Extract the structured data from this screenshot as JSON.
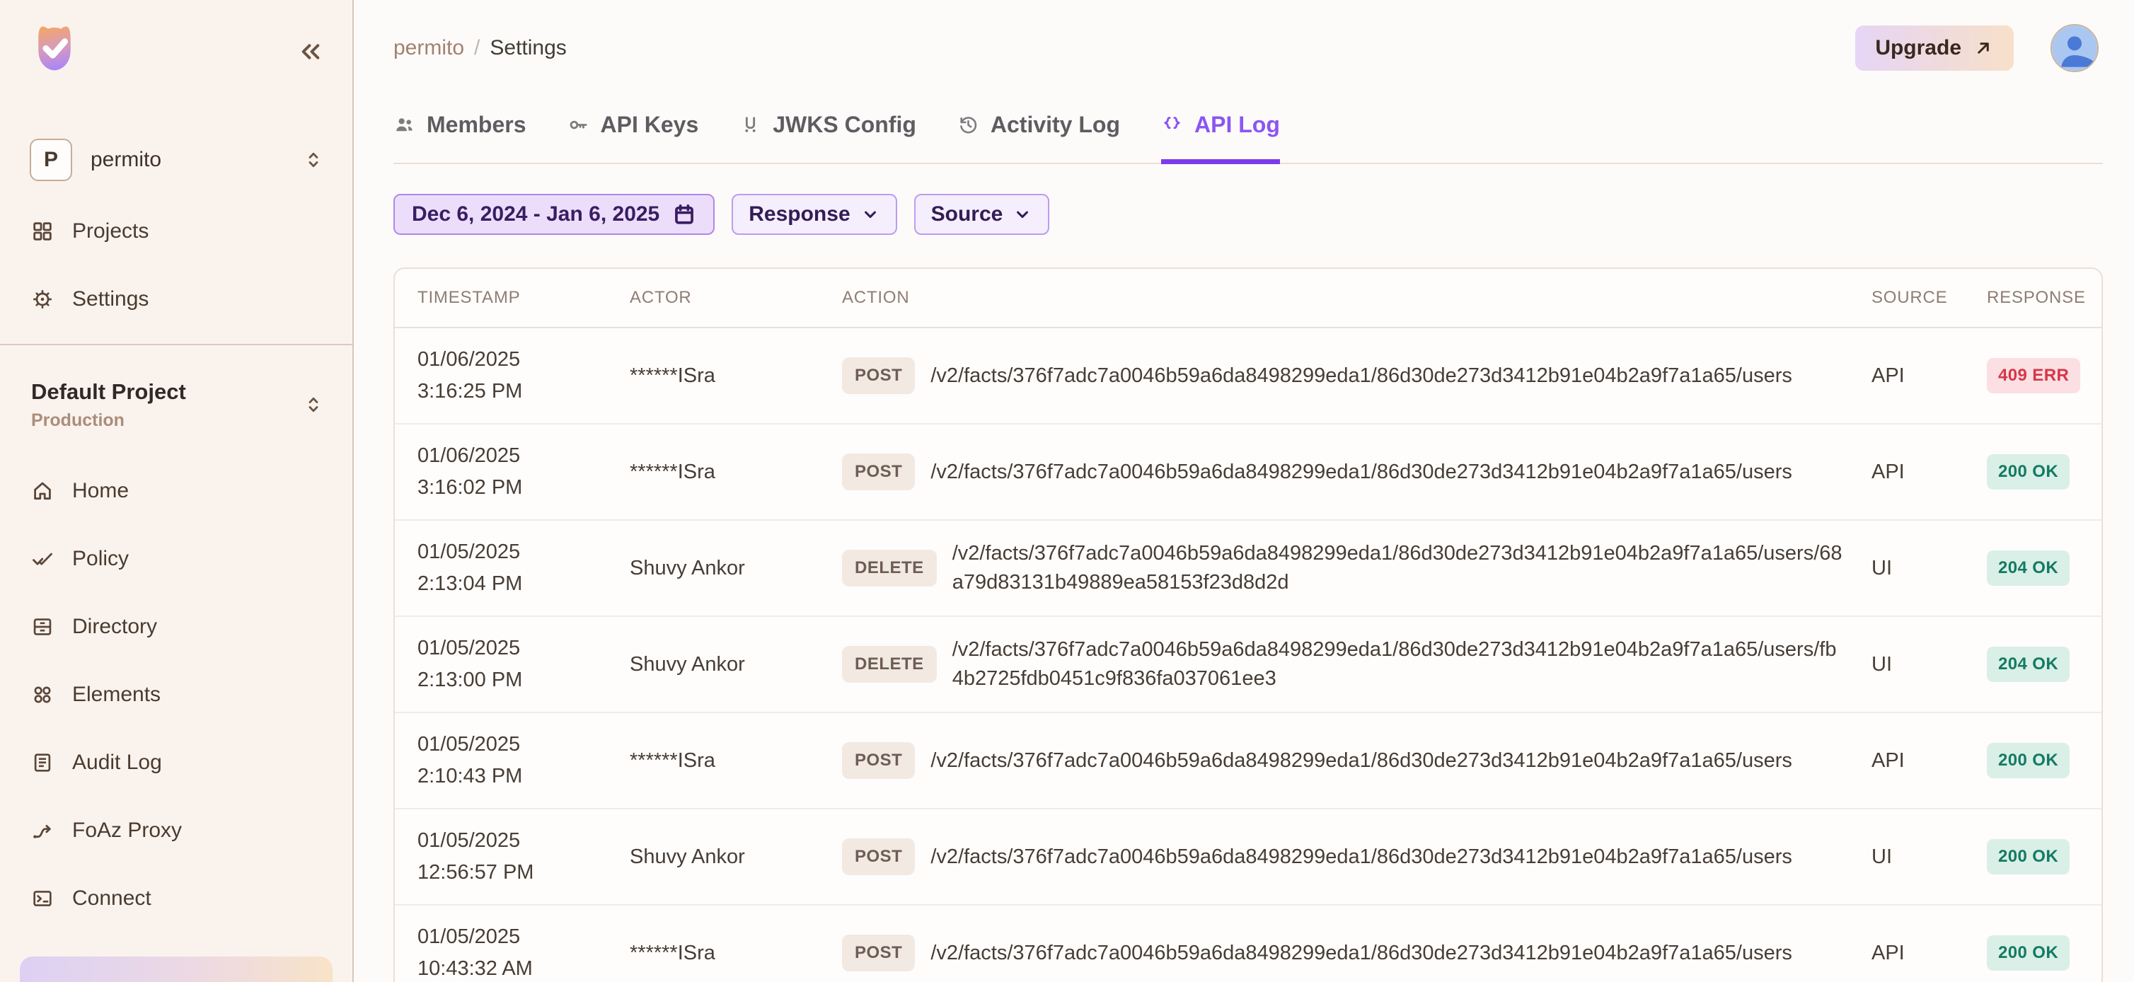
{
  "sidebar": {
    "workspace": {
      "initial": "P",
      "name": "permito"
    },
    "nav_top": [
      {
        "label": "Projects",
        "icon": "grid-icon"
      },
      {
        "label": "Settings",
        "icon": "gear-icon"
      }
    ],
    "project": {
      "name": "Default Project",
      "environment": "Production"
    },
    "nav_project": [
      {
        "label": "Home",
        "icon": "home-icon"
      },
      {
        "label": "Policy",
        "icon": "double-check-icon"
      },
      {
        "label": "Directory",
        "icon": "directory-icon"
      },
      {
        "label": "Elements",
        "icon": "elements-icon"
      },
      {
        "label": "Audit Log",
        "icon": "audit-log-icon"
      },
      {
        "label": "FoAz Proxy",
        "icon": "proxy-route-icon"
      },
      {
        "label": "Connect",
        "icon": "terminal-icon"
      }
    ]
  },
  "header": {
    "breadcrumb": {
      "org": "permito",
      "separator": "/",
      "page": "Settings"
    },
    "upgrade_label": "Upgrade"
  },
  "tabs": [
    {
      "label": "Members",
      "icon": "members-icon",
      "active": false
    },
    {
      "label": "API Keys",
      "icon": "key-icon",
      "active": false
    },
    {
      "label": "JWKS Config",
      "icon": "jwks-icon",
      "active": false
    },
    {
      "label": "Activity Log",
      "icon": "history-icon",
      "active": false
    },
    {
      "label": "API Log",
      "icon": "code-braces-icon",
      "active": true
    }
  ],
  "filters": {
    "date_range": "Dec 6, 2024 - Jan 6, 2025",
    "response_label": "Response",
    "source_label": "Source"
  },
  "table": {
    "columns": [
      "TIMESTAMP",
      "ACTOR",
      "ACTION",
      "SOURCE",
      "RESPONSE"
    ],
    "rows": [
      {
        "date": "01/06/2025",
        "time": "3:16:25 PM",
        "actor": "******ISra",
        "method": "POST",
        "url": "/v2/facts/376f7adc7a0046b59a6da8498299eda1/86d30de273d3412b91e04b2a9f7a1a65/users",
        "source": "API",
        "response": "409 ERR",
        "status": "error"
      },
      {
        "date": "01/06/2025",
        "time": "3:16:02 PM",
        "actor": "******ISra",
        "method": "POST",
        "url": "/v2/facts/376f7adc7a0046b59a6da8498299eda1/86d30de273d3412b91e04b2a9f7a1a65/users",
        "source": "API",
        "response": "200 OK",
        "status": "ok"
      },
      {
        "date": "01/05/2025",
        "time": "2:13:04 PM",
        "actor": "Shuvy Ankor",
        "method": "DELETE",
        "url": "/v2/facts/376f7adc7a0046b59a6da8498299eda1/86d30de273d3412b91e04b2a9f7a1a65/users/68a79d83131b49889ea58153f23d8d2d",
        "source": "UI",
        "response": "204 OK",
        "status": "ok"
      },
      {
        "date": "01/05/2025",
        "time": "2:13:00 PM",
        "actor": "Shuvy Ankor",
        "method": "DELETE",
        "url": "/v2/facts/376f7adc7a0046b59a6da8498299eda1/86d30de273d3412b91e04b2a9f7a1a65/users/fb4b2725fdb0451c9f836fa037061ee3",
        "source": "UI",
        "response": "204 OK",
        "status": "ok"
      },
      {
        "date": "01/05/2025",
        "time": "2:10:43 PM",
        "actor": "******ISra",
        "method": "POST",
        "url": "/v2/facts/376f7adc7a0046b59a6da8498299eda1/86d30de273d3412b91e04b2a9f7a1a65/users",
        "source": "API",
        "response": "200 OK",
        "status": "ok"
      },
      {
        "date": "01/05/2025",
        "time": "12:56:57 PM",
        "actor": "Shuvy Ankor",
        "method": "POST",
        "url": "/v2/facts/376f7adc7a0046b59a6da8498299eda1/86d30de273d3412b91e04b2a9f7a1a65/users",
        "source": "UI",
        "response": "200 OK",
        "status": "ok"
      },
      {
        "date": "01/05/2025",
        "time": "10:43:32 AM",
        "actor": "******ISra",
        "method": "POST",
        "url": "/v2/facts/376f7adc7a0046b59a6da8498299eda1/86d30de273d3412b91e04b2a9f7a1a65/users",
        "source": "API",
        "response": "200 OK",
        "status": "ok"
      }
    ]
  },
  "colors": {
    "accent_purple": "#8b55f2",
    "tab_underline": "#7c3aed",
    "ok_badge_bg": "#d9efe7",
    "ok_badge_text": "#147a63",
    "err_badge_bg": "#fbdfe2",
    "err_badge_text": "#d63649",
    "method_badge_bg": "#f2e9e3",
    "method_badge_text": "#6e5d53",
    "sidebar_bg": "#faf3ed"
  }
}
